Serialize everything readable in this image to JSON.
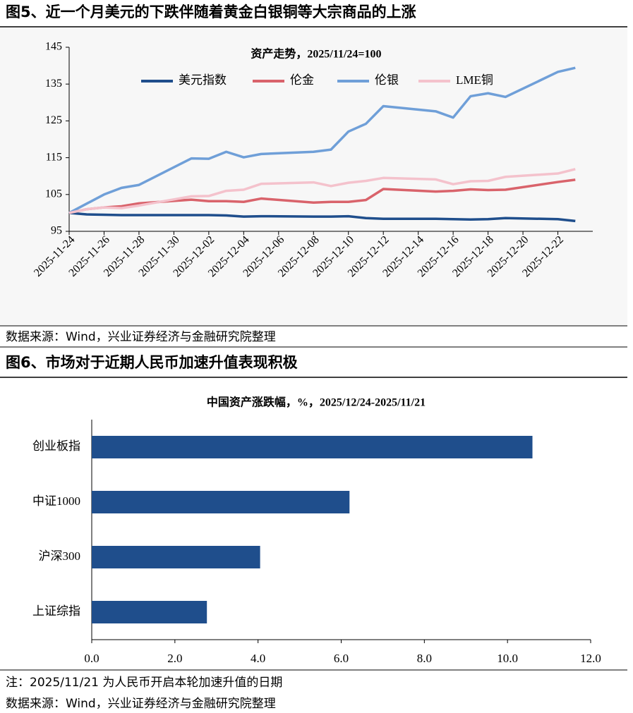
{
  "figure_titles": [
    "图5、近一个月美元的下跌伴随着黄金白银铜等大宗商品的上涨",
    "图6、市场对于近期人民币加速升值表现积极"
  ],
  "sources": [
    "数据来源：Wind，兴业证券经济与金融研究院整理",
    "数据来源：Wind，兴业证券经济与金融研究院整理"
  ],
  "note": "注：2025/11/21 为人民币开启本轮加速升值的日期",
  "chart_data": [
    {
      "type": "line",
      "title": "资产走势，2025/11/24=100",
      "x": [
        "2025-11-24",
        "2025-11-25",
        "2025-11-26",
        "2025-11-27",
        "2025-11-28",
        "2025-12-01",
        "2025-12-02",
        "2025-12-03",
        "2025-12-04",
        "2025-12-05",
        "2025-12-08",
        "2025-12-09",
        "2025-12-10",
        "2025-12-11",
        "2025-12-12",
        "2025-12-15",
        "2025-12-16",
        "2025-12-17",
        "2025-12-18",
        "2025-12-19",
        "2025-12-22",
        "2025-12-23"
      ],
      "xlim": [
        "2025-11-24",
        "2025-12-24"
      ],
      "xticks": [
        "2025-11-24",
        "2025-11-26",
        "2025-11-28",
        "2025-11-30",
        "2025-12-02",
        "2025-12-04",
        "2025-12-06",
        "2025-12-08",
        "2025-12-10",
        "2025-12-12",
        "2025-12-14",
        "2025-12-16",
        "2025-12-18",
        "2025-12-20",
        "2025-12-22"
      ],
      "ylim": [
        95,
        145
      ],
      "yticks": [
        95,
        105,
        115,
        125,
        135,
        145
      ],
      "series": [
        {
          "name": "美元指数",
          "color": "#1f4e8c",
          "values": [
            100,
            99.6,
            99.5,
            99.4,
            99.4,
            99.4,
            99.4,
            99.3,
            99.0,
            99.1,
            99.0,
            99.0,
            99.1,
            98.6,
            98.4,
            98.4,
            98.3,
            98.2,
            98.3,
            98.6,
            98.3,
            97.8
          ]
        },
        {
          "name": "伦金",
          "color": "#d9636b",
          "values": [
            100,
            101.0,
            101.5,
            101.8,
            102.6,
            103.6,
            103.2,
            103.2,
            103.0,
            103.9,
            102.8,
            103.0,
            103.0,
            103.5,
            106.5,
            105.8,
            106.0,
            106.4,
            106.2,
            106.3,
            108.4,
            109.0
          ]
        },
        {
          "name": "伦银",
          "color": "#6f9fd8",
          "values": [
            100,
            102.5,
            105.0,
            106.8,
            107.6,
            114.8,
            114.7,
            116.6,
            115.1,
            116.0,
            116.6,
            117.2,
            122.1,
            124.2,
            129.0,
            127.6,
            125.9,
            131.7,
            132.5,
            131.5,
            138.3,
            139.4
          ]
        },
        {
          "name": "LME铜",
          "color": "#f4c2cc",
          "values": [
            100,
            101.0,
            101.5,
            101.3,
            102.0,
            104.5,
            104.6,
            106.0,
            106.3,
            107.9,
            108.3,
            107.3,
            108.2,
            108.7,
            109.5,
            109.1,
            107.8,
            108.6,
            108.7,
            109.8,
            110.7,
            111.9
          ]
        }
      ]
    },
    {
      "type": "barh",
      "title": "中国资产涨跌幅，%，2025/12/24-2025/11/21",
      "categories": [
        "创业板指",
        "中证1000",
        "沪深300",
        "上证综指"
      ],
      "values": [
        10.6,
        6.2,
        4.05,
        2.77
      ],
      "color": "#1f4e8c",
      "xlim": [
        0,
        12
      ],
      "xticks": [
        {
          "value": 0,
          "label": "0.0"
        },
        {
          "value": 2,
          "label": "2.0"
        },
        {
          "value": 4,
          "label": "4.0"
        },
        {
          "value": 6,
          "label": "6.0"
        },
        {
          "value": 8,
          "label": "8.0"
        },
        {
          "value": 10,
          "label": "10.0"
        },
        {
          "value": 12,
          "label": "12.0"
        }
      ]
    }
  ]
}
